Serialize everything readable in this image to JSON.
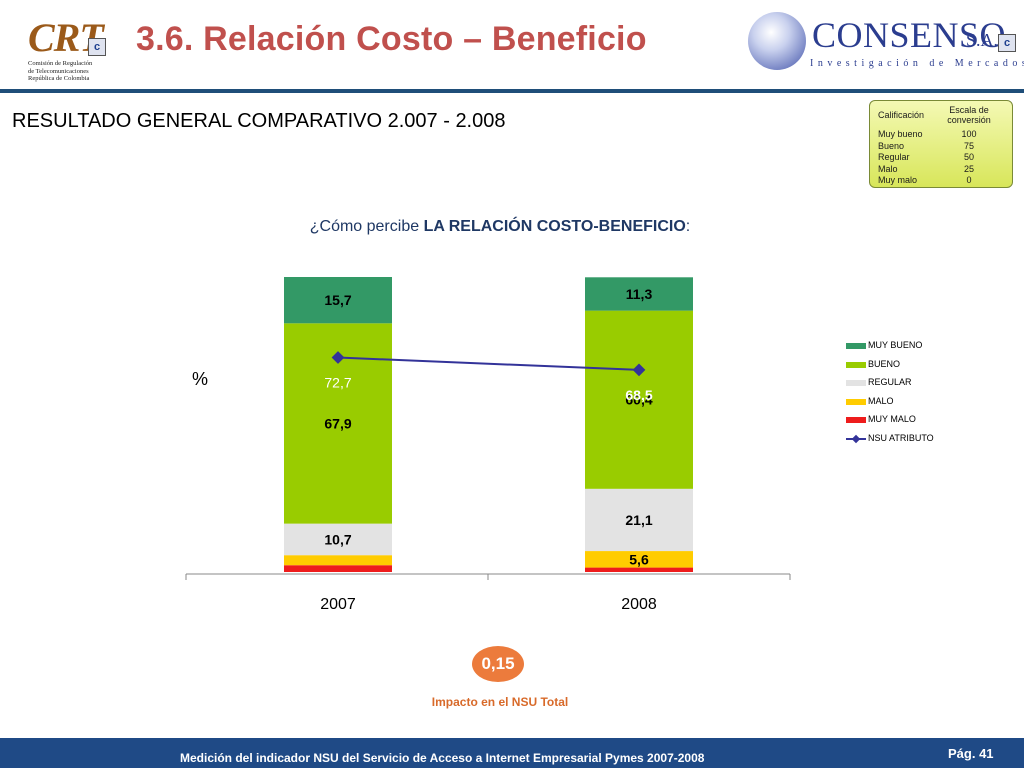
{
  "header": {
    "title": "3.6. Relación Costo – Beneficio",
    "crt_logo": {
      "mark": "CRT",
      "badge": "c",
      "lines": [
        "Comisión de Regulación",
        "de Telecomunicaciones",
        "República de Colombia"
      ]
    },
    "consenso_logo": {
      "word": "CONSENSO",
      "suffix": "S.A.",
      "badge": "c",
      "tagline": "Investigación de Mercados"
    }
  },
  "subtitle": "RESULTADO GENERAL  COMPARATIVO 2.007 - 2.008",
  "conversion_table": {
    "headers": [
      "Calificación",
      "Escala de conversión"
    ],
    "rows": [
      {
        "label": "Muy bueno",
        "value": "100"
      },
      {
        "label": "Bueno",
        "value": "75"
      },
      {
        "label": "Regular",
        "value": "50"
      },
      {
        "label": "Malo",
        "value": "25"
      },
      {
        "label": "Muy malo",
        "value": "0"
      }
    ]
  },
  "question": {
    "prefix": "¿Cómo percibe ",
    "emphasis": "LA RELACIÓN COSTO-BENEFICIO",
    "suffix": ":"
  },
  "ylabel": "%",
  "chart_data": {
    "type": "bar",
    "stacked": true,
    "categories": [
      "2007",
      "2008"
    ],
    "series": [
      {
        "name": "MUY MALO",
        "values": [
          2.3,
          1.5
        ],
        "labels": [
          "",
          ""
        ],
        "color": "#ee1c1c"
      },
      {
        "name": "MALO",
        "values": [
          3.4,
          5.6
        ],
        "labels": [
          "",
          "5,6"
        ],
        "color": "#ffcc00"
      },
      {
        "name": "REGULAR",
        "values": [
          10.7,
          21.1
        ],
        "labels": [
          "10,7",
          "21,1"
        ],
        "color": "#e3e3e3"
      },
      {
        "name": "BUENO",
        "values": [
          67.9,
          60.4
        ],
        "labels": [
          "67,9",
          "60,4"
        ],
        "color": "#99cc00"
      },
      {
        "name": "MUY BUENO",
        "values": [
          15.7,
          11.3
        ],
        "labels": [
          "15,7",
          "11,3"
        ],
        "color": "#339966"
      }
    ],
    "line": {
      "name": "NSU ATRIBUTO",
      "values": [
        72.7,
        68.5
      ],
      "labels": [
        "72,7",
        "68,5"
      ],
      "color": "#333399"
    },
    "ylim": [
      0,
      100
    ],
    "legend": "right",
    "legend_order": [
      "MUY BUENO",
      "BUENO",
      "REGULAR",
      "MALO",
      "MUY MALO",
      "NSU ATRIBUTO"
    ]
  },
  "impact": {
    "value": "0,15",
    "caption": "Impacto en el NSU Total"
  },
  "footer": {
    "text": "Medición del  indicador NSU del Servicio de Acceso a Internet Empresarial Pymes 2007-2008",
    "page": "Pág. 41"
  },
  "colors": {
    "title": "#c0504d",
    "footer": "#1f4a86",
    "accent": "#ec7b3c"
  }
}
